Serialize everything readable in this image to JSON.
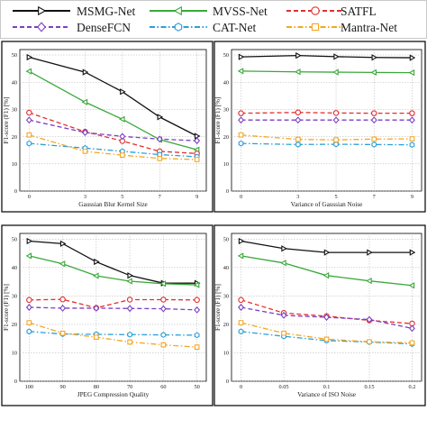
{
  "legend": [
    {
      "name": "MSMG-Net",
      "color": "#111111",
      "marker": "triangle-right",
      "dash": "solid"
    },
    {
      "name": "MVSS-Net",
      "color": "#3aa83a",
      "marker": "triangle-left",
      "dash": "solid"
    },
    {
      "name": "SATFL",
      "color": "#e03030",
      "marker": "circle",
      "dash": "dashed"
    },
    {
      "name": "DenseFCN",
      "color": "#7b3fc4",
      "marker": "diamond",
      "dash": "dashed"
    },
    {
      "name": "CAT-Net",
      "color": "#2b9fd9",
      "marker": "hexagon",
      "dash": "dashdot"
    },
    {
      "name": "Mantra-Net",
      "color": "#f5a623",
      "marker": "square",
      "dash": "dashdot"
    }
  ],
  "chart_data": [
    {
      "type": "line",
      "xlabel": "Gaussian Blur Kernel Size",
      "ylabel": "F1-score (F1) [%]",
      "x": [
        0,
        3,
        5,
        7,
        9
      ],
      "xticks": [
        "0",
        "3",
        "5",
        "7",
        "9"
      ],
      "ylim": [
        0,
        52
      ],
      "yticks": [
        0,
        10,
        20,
        30,
        40,
        50
      ],
      "grid": true,
      "series": [
        {
          "name": "MSMG-Net",
          "values": [
            49.2,
            43.7,
            36.5,
            27.2,
            20.2
          ]
        },
        {
          "name": "MVSS-Net",
          "values": [
            44.0,
            32.7,
            26.4,
            18.9,
            15.2
          ]
        },
        {
          "name": "SATFL",
          "values": [
            28.8,
            21.8,
            18.4,
            14.6,
            13.8
          ]
        },
        {
          "name": "DenseFCN",
          "values": [
            26.1,
            21.5,
            20.1,
            19.1,
            18.5
          ]
        },
        {
          "name": "CAT-Net",
          "values": [
            17.5,
            15.8,
            14.6,
            13.4,
            12.6
          ]
        },
        {
          "name": "Mantra-Net",
          "values": [
            20.6,
            14.6,
            13.2,
            12.0,
            11.6
          ]
        }
      ]
    },
    {
      "type": "line",
      "xlabel": "Variance of Gaussian Noise",
      "ylabel": "F1-score (F1) [%]",
      "x": [
        0,
        3,
        5,
        7,
        9
      ],
      "xticks": [
        "0",
        "3",
        "5",
        "7",
        "9"
      ],
      "ylim": [
        0,
        52
      ],
      "yticks": [
        0,
        10,
        20,
        30,
        40,
        50
      ],
      "grid": true,
      "series": [
        {
          "name": "MSMG-Net",
          "values": [
            49.3,
            49.8,
            49.4,
            49.1,
            49.0
          ]
        },
        {
          "name": "MVSS-Net",
          "values": [
            44.1,
            43.8,
            43.7,
            43.6,
            43.5
          ]
        },
        {
          "name": "SATFL",
          "values": [
            28.6,
            28.9,
            28.7,
            28.6,
            28.6
          ]
        },
        {
          "name": "DenseFCN",
          "values": [
            26.1,
            26.1,
            26.1,
            26.1,
            26.1
          ]
        },
        {
          "name": "CAT-Net",
          "values": [
            17.5,
            17.1,
            17.2,
            17.1,
            17.0
          ]
        },
        {
          "name": "Mantra-Net",
          "values": [
            20.6,
            19.0,
            18.8,
            19.1,
            19.2
          ]
        }
      ]
    },
    {
      "type": "line",
      "xlabel": "JPEG Compression Quality",
      "ylabel": "F1-score (F1) [%]",
      "x": [
        100,
        90,
        80,
        70,
        60,
        50
      ],
      "xticks": [
        "100",
        "90",
        "80",
        "70",
        "60",
        "50"
      ],
      "xreverse": true,
      "ylim": [
        0,
        52
      ],
      "yticks": [
        0,
        10,
        20,
        30,
        40,
        50
      ],
      "grid": true,
      "series": [
        {
          "name": "MSMG-Net",
          "values": [
            49.3,
            48.4,
            42.0,
            37.2,
            34.5,
            34.5
          ]
        },
        {
          "name": "MVSS-Net",
          "values": [
            44.1,
            41.3,
            37.1,
            35.2,
            34.3,
            33.9
          ]
        },
        {
          "name": "SATFL",
          "values": [
            28.6,
            28.8,
            25.8,
            28.7,
            28.7,
            28.6
          ]
        },
        {
          "name": "DenseFCN",
          "values": [
            26.0,
            25.7,
            25.7,
            25.6,
            25.5,
            25.1
          ]
        },
        {
          "name": "CAT-Net",
          "values": [
            17.5,
            16.6,
            16.5,
            16.4,
            16.3,
            16.2
          ]
        },
        {
          "name": "Mantra-Net",
          "values": [
            20.6,
            16.9,
            15.5,
            13.8,
            12.8,
            12.0
          ]
        }
      ]
    },
    {
      "type": "line",
      "xlabel": "Variance of ISO Noise",
      "ylabel": "F1-score (F1) [%]",
      "x": [
        0,
        0.05,
        0.1,
        0.15,
        0.2
      ],
      "xticks": [
        "0",
        "0.05",
        "0.1",
        "0.15",
        "0.2"
      ],
      "ylim": [
        0,
        52
      ],
      "yticks": [
        0,
        10,
        20,
        30,
        40,
        50
      ],
      "grid": true,
      "series": [
        {
          "name": "MSMG-Net",
          "values": [
            49.3,
            46.7,
            45.3,
            45.3,
            45.3
          ]
        },
        {
          "name": "MVSS-Net",
          "values": [
            44.1,
            41.6,
            37.2,
            35.3,
            33.7
          ]
        },
        {
          "name": "SATFL",
          "values": [
            28.6,
            24.0,
            22.9,
            21.4,
            20.3
          ]
        },
        {
          "name": "DenseFCN",
          "values": [
            26.0,
            23.2,
            22.5,
            21.7,
            18.6
          ]
        },
        {
          "name": "CAT-Net",
          "values": [
            17.5,
            15.8,
            14.3,
            13.8,
            13.1
          ]
        },
        {
          "name": "Mantra-Net",
          "values": [
            20.6,
            16.9,
            14.8,
            13.9,
            13.5
          ]
        }
      ]
    }
  ]
}
